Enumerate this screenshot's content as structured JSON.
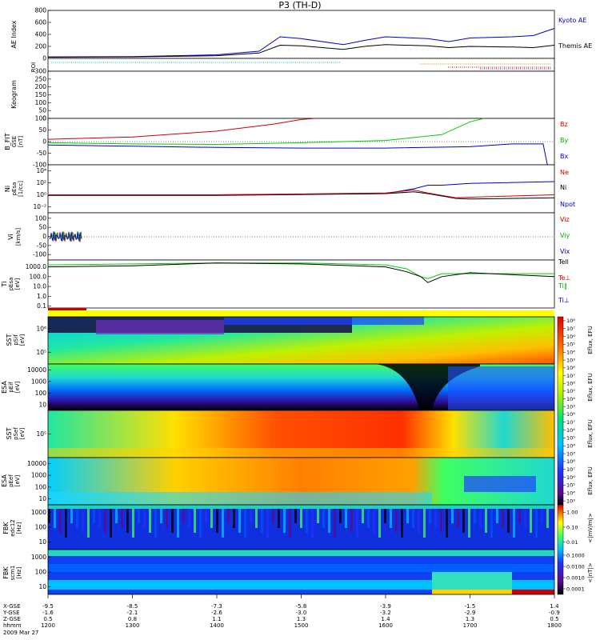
{
  "title": "P3 (TH-D)",
  "chart_data": {
    "type": "multi-panel-timeseries",
    "x": {
      "ticks_hhmm": [
        "1200",
        "1300",
        "1400",
        "1500",
        "1600",
        "1700",
        "1800"
      ],
      "x_gse": [
        "-9.5",
        "-8.5",
        "-7.3",
        "-5.8",
        "-3.9",
        "-1.5",
        "1.4"
      ],
      "y_gse": [
        "-1.6",
        "-2.1",
        "-2.6",
        "-3.0",
        "-3.2",
        "-2.9",
        "-0.9"
      ],
      "z_gse": [
        "0.5",
        "0.8",
        "1.1",
        "1.3",
        "1.4",
        "1.3",
        "0.5"
      ],
      "row_labels": [
        "X-GSE",
        "Y-GSE",
        "Z-GSE",
        "hhmm"
      ],
      "date_label": "2009 Mar 27"
    },
    "panels": [
      {
        "id": "ae",
        "type": "line",
        "ylabel": "AE Index",
        "yticks": [
          "0",
          "200",
          "400",
          "600",
          "800"
        ],
        "ylim": [
          0,
          800
        ],
        "legend": [
          {
            "name": "Kyoto AE",
            "color": "#0000cc"
          },
          {
            "name": "Themis AE",
            "color": "#000000"
          }
        ],
        "series": [
          {
            "name": "Kyoto AE",
            "color": "#0000cc",
            "t": [
              1200,
              1300,
              1400,
              1430,
              1445,
              1500,
              1530,
              1545,
              1600,
              1630,
              1645,
              1700,
              1730,
              1745,
              1800
            ],
            "values": [
              25,
              30,
              60,
              120,
              360,
              330,
              230,
              300,
              360,
              330,
              280,
              340,
              360,
              380,
              500
            ]
          },
          {
            "name": "Themis AE",
            "color": "#000000",
            "t": [
              1200,
              1300,
              1400,
              1430,
              1445,
              1500,
              1530,
              1545,
              1600,
              1630,
              1645,
              1700,
              1730,
              1745,
              1800
            ],
            "values": [
              20,
              25,
              45,
              90,
              220,
              210,
              150,
              200,
              230,
              210,
              180,
              200,
              190,
              180,
              220
            ]
          }
        ]
      },
      {
        "id": "roi",
        "type": "raster",
        "ylabel": "ROI"
      },
      {
        "id": "keogram",
        "type": "image",
        "ylabel": "Keogram",
        "yticks": [
          "0",
          "50",
          "100",
          "150",
          "200",
          "250",
          "300"
        ],
        "ylim": [
          0,
          300
        ]
      },
      {
        "id": "bfit",
        "type": "line",
        "ylabel": "B_FIT",
        "ylabel2": "GSE",
        "units": "[nT]",
        "yticks": [
          "-100",
          "-50",
          "0",
          "50",
          "100"
        ],
        "ylim": [
          -100,
          100
        ],
        "legend": [
          {
            "name": "Bz",
            "color": "#cc0000"
          },
          {
            "name": "By",
            "color": "#00cc00"
          },
          {
            "name": "Bx",
            "color": "#0000cc"
          }
        ],
        "series": [
          {
            "name": "Bz",
            "color": "#cc0000",
            "t": [
              1200,
              1300,
              1400,
              1440,
              1500,
              1510
            ],
            "values": [
              10,
              20,
              45,
              75,
              95,
              100
            ]
          },
          {
            "name": "By",
            "color": "#00cc00",
            "t": [
              1200,
              1300,
              1400,
              1500,
              1600,
              1640,
              1700,
              1710
            ],
            "values": [
              -5,
              -10,
              -12,
              -5,
              5,
              30,
              85,
              100
            ]
          },
          {
            "name": "Bx",
            "color": "#0000cc",
            "t": [
              1200,
              1300,
              1400,
              1500,
              1600,
              1700,
              1730,
              1752,
              1755
            ],
            "values": [
              -15,
              -20,
              -25,
              -28,
              -28,
              -22,
              -10,
              -10,
              -100
            ]
          }
        ]
      },
      {
        "id": "ni",
        "type": "line",
        "ylabel": "Ni",
        "ylabel2": "pEsa",
        "units": "[1/cc]",
        "yticks": [
          "10⁻²",
          "10⁰",
          "10²",
          "10⁴"
        ],
        "log": true,
        "ylim": [
          -3,
          5
        ],
        "legend": [
          {
            "name": "Ne",
            "color": "#cc0000"
          },
          {
            "name": "Ni",
            "color": "#000000"
          },
          {
            "name": "Npot",
            "color": "#0000cc"
          }
        ],
        "series": [
          {
            "name": "Npot",
            "color": "#0000cc",
            "t": [
              1200,
              1400,
              1600,
              1620,
              1630,
              1640,
              1700,
              1800
            ],
            "values": [
              0,
              0,
              0.2,
              1,
              1.6,
              1.6,
              1.9,
              2.2
            ]
          },
          {
            "name": "Ni",
            "color": "#000000",
            "t": [
              1200,
              1400,
              1600,
              1620,
              1630,
              1650,
              1700,
              1800
            ],
            "values": [
              -0.1,
              -0.1,
              0.2,
              0.5,
              0.2,
              -0.6,
              -0.7,
              -0.5
            ]
          },
          {
            "name": "Ne",
            "color": "#cc0000",
            "t": [
              1200,
              1400,
              1600,
              1620,
              1630,
              1650,
              1700,
              1800
            ],
            "values": [
              0,
              0,
              0.3,
              0.8,
              0.3,
              -0.5,
              -0.4,
              0
            ]
          }
        ]
      },
      {
        "id": "vi",
        "type": "line",
        "ylabel": "Vi",
        "units": "[km/s]",
        "yticks": [
          "-100",
          "-50",
          "0",
          "50",
          "100"
        ],
        "ylim": [
          -130,
          130
        ],
        "legend": [
          {
            "name": "Viz",
            "color": "#cc0000"
          },
          {
            "name": "Viy",
            "color": "#00cc00"
          },
          {
            "name": "Vix",
            "color": "#0000cc"
          }
        ]
      },
      {
        "id": "ti",
        "type": "line",
        "ylabel": "Ti",
        "ylabel2": "pEsa",
        "units": "[eV]",
        "yticks": [
          "0.1",
          "1.0",
          "10.0",
          "100.0",
          "1000.0"
        ],
        "log": true,
        "ylim": [
          -1.2,
          3.7
        ],
        "legend": [
          {
            "name": "Tell",
            "color": "#000000"
          },
          {
            "name": "Te⊥",
            "color": "#cc0000"
          },
          {
            "name": "Ti∥",
            "color": "#00cc00"
          },
          {
            "name": "Ti⊥",
            "color": "#0000cc"
          }
        ],
        "series": [
          {
            "name": "Ti∥",
            "color": "#00cc00",
            "t": [
              1200,
              1300,
              1400,
              1500,
              1600,
              1615,
              1625,
              1630,
              1640,
              1700,
              1800
            ],
            "values": [
              3.2,
              3.3,
              3.4,
              3.4,
              3.2,
              2.8,
              2.0,
              1.8,
              2.3,
              2.3,
              2.3
            ]
          },
          {
            "name": "Tell",
            "color": "#000000",
            "t": [
              1200,
              1300,
              1400,
              1500,
              1600,
              1615,
              1625,
              1630,
              1640,
              1700,
              1800
            ],
            "values": [
              3.0,
              3.1,
              3.4,
              3.3,
              3.0,
              2.5,
              2.0,
              1.4,
              2.0,
              2.4,
              2.0
            ]
          }
        ]
      },
      {
        "id": "sst1",
        "type": "heatmap",
        "ylabel": "SST",
        "ylabel2": "pSif",
        "units": "[eV]",
        "yticks": [
          "10⁵",
          "10⁶"
        ],
        "cbar": {
          "label": "Eflux, EFU",
          "ticks": [
            "10³",
            "10⁴",
            "10⁵",
            "10⁶",
            "10⁷",
            "10⁸"
          ]
        }
      },
      {
        "id": "esa1",
        "type": "heatmap",
        "ylabel": "ESA",
        "ylabel2": "pEif",
        "units": "[eV]",
        "yticks": [
          "10",
          "100",
          "1000",
          "10000"
        ],
        "cbar": {
          "label": "Eflux, EFU",
          "ticks": [
            "10³",
            "10⁴",
            "10⁵",
            "10⁶",
            "10⁷",
            "10⁸"
          ]
        }
      },
      {
        "id": "sst2",
        "type": "heatmap",
        "ylabel": "SST",
        "ylabel2": "pSef",
        "units": "[eV]",
        "yticks": [
          "10⁵"
        ],
        "cbar": {
          "label": "Eflux, EFU",
          "ticks": [
            "10³",
            "10⁴",
            "10⁵",
            "10⁶",
            "10⁷",
            "10⁸"
          ]
        }
      },
      {
        "id": "esa2",
        "type": "heatmap",
        "ylabel": "ESA",
        "ylabel2": "pEef",
        "units": "[eV]",
        "yticks": [
          "10",
          "100",
          "1000",
          "10000"
        ],
        "cbar": {
          "label": "Eflux, EFU",
          "ticks": [
            "10³",
            "10⁴",
            "10⁵",
            "10⁶",
            "10⁷",
            "10⁸"
          ]
        }
      },
      {
        "id": "fbk1",
        "type": "heatmap",
        "ylabel": "FBK",
        "ylabel2": "edc12",
        "units": "[Hz]",
        "yticks": [
          "10",
          "100",
          "1000"
        ],
        "cbar": {
          "label": "<|mV/m|>",
          "ticks": [
            "0.01",
            "0.10",
            "1.00"
          ]
        }
      },
      {
        "id": "fbk2",
        "type": "heatmap",
        "ylabel": "FBK",
        "ylabel2": "scm1",
        "units": "[Hz]",
        "yticks": [
          "10",
          "100",
          "1000"
        ],
        "cbar": {
          "label": "<|nT|>",
          "ticks": [
            "0.0001",
            "0.0010",
            "0.0100",
            "0.1000"
          ]
        }
      }
    ]
  }
}
